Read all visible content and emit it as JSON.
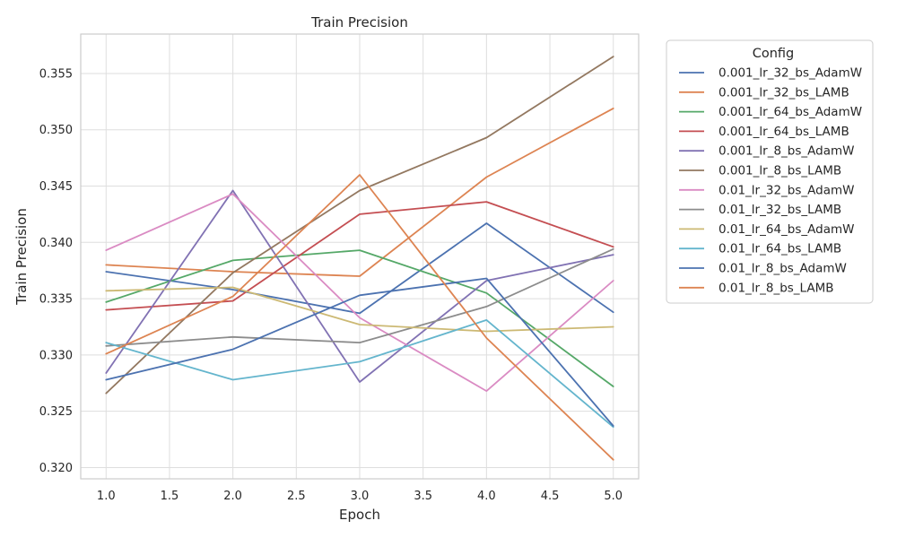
{
  "chart_data": {
    "type": "line",
    "title": "Train Precision",
    "xlabel": "Epoch",
    "ylabel": "Train Precision",
    "xlim": [
      0.8,
      5.2
    ],
    "ylim": [
      0.319,
      0.3585
    ],
    "xticks": [
      1.0,
      1.5,
      2.0,
      2.5,
      3.0,
      3.5,
      4.0,
      4.5,
      5.0
    ],
    "xtick_labels": [
      "1.0",
      "1.5",
      "2.0",
      "2.5",
      "3.0",
      "3.5",
      "4.0",
      "4.5",
      "5.0"
    ],
    "yticks": [
      0.32,
      0.325,
      0.33,
      0.335,
      0.34,
      0.345,
      0.35,
      0.355
    ],
    "ytick_labels": [
      "0.320",
      "0.325",
      "0.330",
      "0.335",
      "0.340",
      "0.345",
      "0.350",
      "0.355"
    ],
    "grid": true,
    "legend": {
      "title": "Config",
      "placement": "outside-right"
    },
    "x": [
      1,
      2,
      3,
      4,
      5
    ],
    "series": [
      {
        "name": "0.001_lr_32_bs_AdamW",
        "color": "#4c72b0",
        "values": [
          0.3374,
          0.3358,
          0.3337,
          0.3417,
          0.3338
        ]
      },
      {
        "name": "0.001_lr_32_bs_LAMB",
        "color": "#dd8452",
        "values": [
          0.338,
          0.3374,
          0.337,
          0.3458,
          0.3519
        ]
      },
      {
        "name": "0.001_lr_64_bs_AdamW",
        "color": "#55a868",
        "values": [
          0.3347,
          0.3384,
          0.3393,
          0.3355,
          0.3272
        ]
      },
      {
        "name": "0.001_lr_64_bs_LAMB",
        "color": "#c44e52",
        "values": [
          0.334,
          0.3348,
          0.3425,
          0.3436,
          0.3396
        ]
      },
      {
        "name": "0.001_lr_8_bs_AdamW",
        "color": "#8172b3",
        "values": [
          0.3284,
          0.3446,
          0.3276,
          0.3366,
          0.3389
        ]
      },
      {
        "name": "0.001_lr_8_bs_LAMB",
        "color": "#937860",
        "values": [
          0.3266,
          0.3373,
          0.3446,
          0.3493,
          0.3565
        ]
      },
      {
        "name": "0.01_lr_32_bs_AdamW",
        "color": "#da8bc3",
        "values": [
          0.3393,
          0.3443,
          0.3333,
          0.3268,
          0.3366
        ]
      },
      {
        "name": "0.01_lr_32_bs_LAMB",
        "color": "#8c8c8c",
        "values": [
          0.3308,
          0.3316,
          0.3311,
          0.3343,
          0.3394
        ]
      },
      {
        "name": "0.01_lr_64_bs_AdamW",
        "color": "#ccb974",
        "values": [
          0.3357,
          0.336,
          0.3327,
          0.3321,
          0.3325
        ]
      },
      {
        "name": "0.01_lr_64_bs_LAMB",
        "color": "#64b5cd",
        "values": [
          0.3311,
          0.3278,
          0.3294,
          0.3331,
          0.3236
        ]
      },
      {
        "name": "0.01_lr_8_bs_AdamW",
        "color": "#4c72b0",
        "values": [
          0.3278,
          0.3305,
          0.3353,
          0.3368,
          0.3237
        ]
      },
      {
        "name": "0.01_lr_8_bs_LAMB",
        "color": "#dd8452",
        "values": [
          0.3301,
          0.3352,
          0.346,
          0.3315,
          0.3207
        ]
      }
    ]
  }
}
